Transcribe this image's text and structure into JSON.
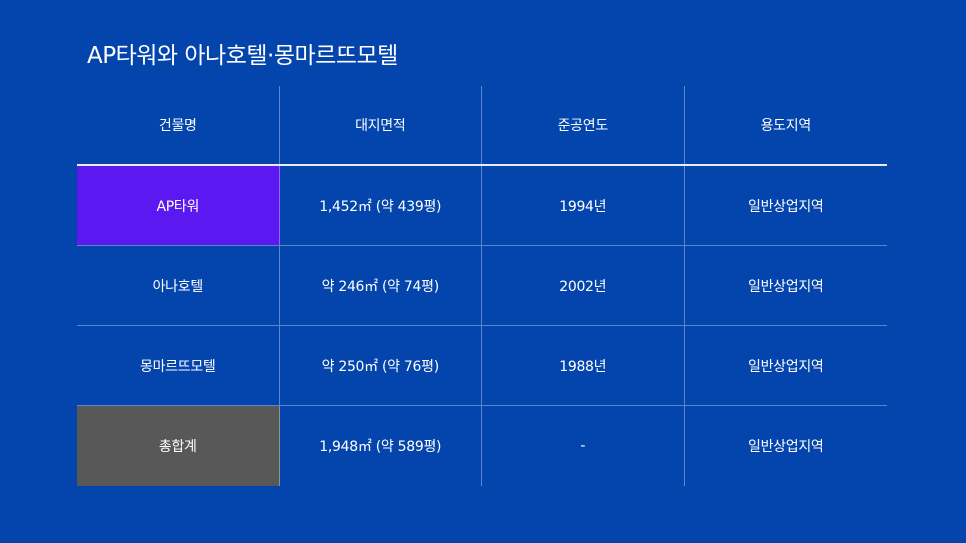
{
  "title": "AP타워와 아나호텔·몽마르뜨모텔",
  "colors": {
    "background": "#0445ad",
    "ap_row_highlight": "#5b18f0",
    "total_row_highlight": "#585858"
  },
  "table": {
    "headers": [
      "건물명",
      "대지면적",
      "준공연도",
      "용도지역"
    ],
    "rows": [
      [
        "AP타워",
        "1,452㎡ (약 439평)",
        "1994년",
        "일반상업지역"
      ],
      [
        "아나호텔",
        "약 246㎡ (약 74평)",
        "2002년",
        "일반상업지역"
      ],
      [
        "몽마르뜨모텔",
        "약 250㎡ (약 76평)",
        "1988년",
        "일반상업지역"
      ],
      [
        "총합계",
        "1,948㎡ (약 589평)",
        "-",
        "일반상업지역"
      ]
    ]
  }
}
